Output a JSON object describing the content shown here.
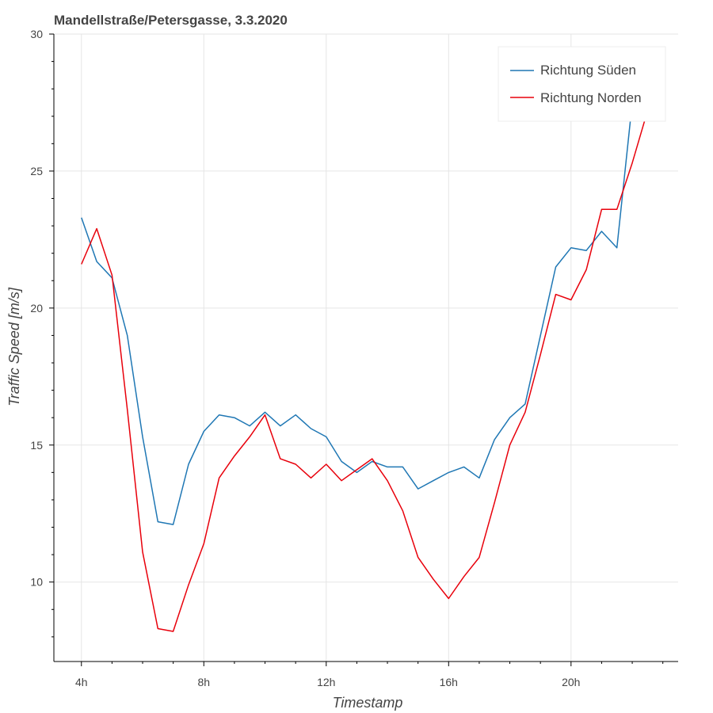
{
  "chart_data": {
    "type": "line",
    "title": "Mandellstraße/Petersgasse, 3.3.2020",
    "xlabel": "Timestamp",
    "ylabel": "Traffic Speed [m/s]",
    "x_unit": "hour of day",
    "xlim": [
      3.1,
      23.5
    ],
    "ylim": [
      7.1,
      30
    ],
    "x_ticks": [
      4,
      8,
      12,
      16,
      20
    ],
    "x_tick_labels": [
      "4h",
      "8h",
      "12h",
      "16h",
      "20h"
    ],
    "y_ticks": [
      10,
      15,
      20,
      25,
      30
    ],
    "y_tick_labels": [
      "10",
      "15",
      "20",
      "25",
      "30"
    ],
    "grid": true,
    "legend_position": "top-right",
    "x": [
      4,
      4.5,
      5,
      5.5,
      6,
      6.5,
      7,
      7.5,
      8,
      8.5,
      9,
      9.5,
      10,
      10.5,
      11,
      11.5,
      12,
      12.5,
      13,
      13.5,
      14,
      14.5,
      15,
      15.5,
      16,
      16.5,
      17,
      17.5,
      18,
      18.5,
      19,
      19.5,
      20,
      20.5,
      21,
      21.5,
      22,
      22.5
    ],
    "series": [
      {
        "name": "Richtung Süden",
        "color": "#1f77b4",
        "values": [
          23.3,
          21.7,
          21.1,
          19.0,
          15.3,
          12.2,
          12.1,
          14.3,
          15.5,
          16.1,
          16.0,
          15.7,
          16.2,
          15.7,
          16.1,
          15.6,
          15.3,
          14.4,
          14.0,
          14.4,
          14.2,
          14.2,
          13.4,
          13.7,
          14.0,
          14.2,
          13.8,
          15.2,
          16.0,
          16.5,
          19.0,
          21.5,
          22.2,
          22.1,
          22.8,
          22.2,
          27.5,
          28.6
        ]
      },
      {
        "name": "Richtung Norden",
        "color": "#e8000b",
        "values": [
          21.6,
          22.9,
          21.2,
          16.3,
          11.1,
          8.3,
          8.2,
          9.9,
          11.4,
          13.8,
          14.6,
          15.3,
          16.1,
          14.5,
          14.3,
          13.8,
          14.3,
          13.7,
          14.1,
          14.5,
          13.7,
          12.6,
          10.9,
          10.1,
          9.4,
          10.2,
          10.9,
          12.9,
          15.0,
          16.2,
          18.3,
          20.5,
          20.3,
          21.4,
          23.6,
          23.6,
          25.3,
          27.2
        ]
      }
    ]
  }
}
